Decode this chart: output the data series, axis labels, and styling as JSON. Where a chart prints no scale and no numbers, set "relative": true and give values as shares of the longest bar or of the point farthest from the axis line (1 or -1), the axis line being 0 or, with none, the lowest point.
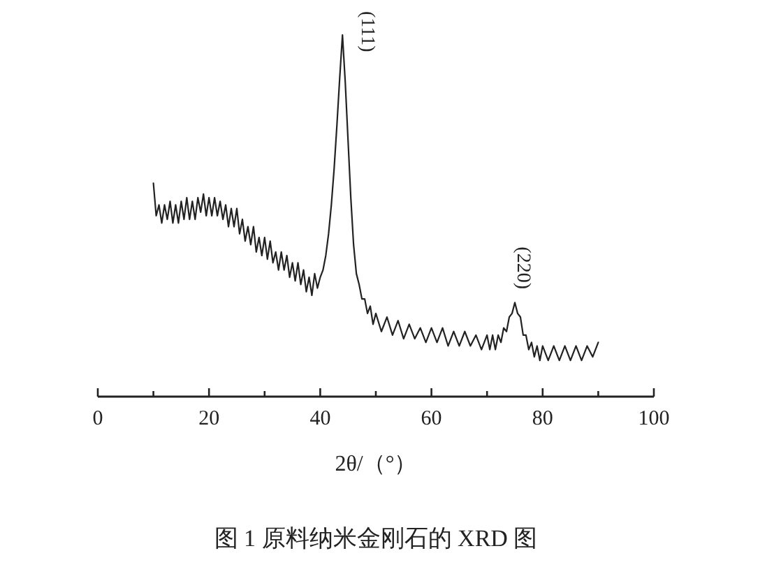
{
  "chart_data": {
    "type": "line",
    "relative": true,
    "color": "#222222",
    "xlabel": "2θ/（°）",
    "xlim": [
      0,
      100
    ],
    "xticks": [
      0,
      {
        "value": 10,
        "label": null
      },
      20,
      {
        "value": 30,
        "label": null
      },
      40,
      {
        "value": 50,
        "label": null
      },
      60,
      {
        "value": 70,
        "label": null
      },
      80,
      {
        "value": 90,
        "label": null
      },
      100
    ],
    "annotations": [
      {
        "text": "(111)",
        "x": 44,
        "y": 1.0
      },
      {
        "text": "(220)",
        "x": 75,
        "y": 0.26
      },
      "图 1   原料纳米金刚石的 XRD 图"
    ],
    "x": [
      10,
      10.5,
      11,
      11.5,
      12,
      12.5,
      13,
      13.5,
      14,
      14.5,
      15,
      15.5,
      16,
      16.5,
      17,
      17.5,
      18,
      18.5,
      19,
      19.5,
      20,
      20.5,
      21,
      21.5,
      22,
      22.5,
      23,
      23.5,
      24,
      24.5,
      25,
      25.5,
      26,
      26.5,
      27,
      27.5,
      28,
      28.5,
      29,
      29.5,
      30,
      30.5,
      31,
      31.5,
      32,
      32.5,
      33,
      33.5,
      34,
      34.5,
      35,
      35.5,
      36,
      36.5,
      37,
      37.5,
      38,
      38.5,
      39,
      39.5,
      40,
      40.5,
      41,
      41.5,
      42,
      42.5,
      43,
      43.5,
      44,
      44.5,
      45,
      45.5,
      46,
      46.5,
      47,
      47.5,
      48,
      48.5,
      49,
      49.5,
      50,
      51,
      52,
      53,
      54,
      55,
      56,
      57,
      58,
      59,
      60,
      61,
      62,
      63,
      64,
      65,
      66,
      67,
      68,
      69,
      70,
      70.5,
      71,
      71.5,
      72,
      72.5,
      73,
      73.5,
      74,
      74.5,
      75,
      75.5,
      76,
      76.5,
      77,
      77.5,
      78,
      78.5,
      79,
      79.5,
      80,
      81,
      82,
      83,
      84,
      85,
      86,
      87,
      88,
      89,
      90
    ],
    "values": [
      0.59,
      0.5,
      0.53,
      0.48,
      0.53,
      0.49,
      0.54,
      0.48,
      0.53,
      0.48,
      0.54,
      0.49,
      0.55,
      0.49,
      0.54,
      0.49,
      0.55,
      0.51,
      0.56,
      0.5,
      0.55,
      0.5,
      0.55,
      0.5,
      0.54,
      0.49,
      0.53,
      0.47,
      0.52,
      0.47,
      0.52,
      0.45,
      0.49,
      0.43,
      0.47,
      0.42,
      0.47,
      0.4,
      0.44,
      0.39,
      0.44,
      0.38,
      0.43,
      0.37,
      0.4,
      0.35,
      0.4,
      0.35,
      0.39,
      0.33,
      0.37,
      0.32,
      0.37,
      0.31,
      0.35,
      0.29,
      0.33,
      0.28,
      0.34,
      0.3,
      0.33,
      0.35,
      0.39,
      0.45,
      0.53,
      0.63,
      0.75,
      0.88,
      1.0,
      0.87,
      0.71,
      0.55,
      0.42,
      0.34,
      0.31,
      0.27,
      0.27,
      0.23,
      0.25,
      0.2,
      0.23,
      0.18,
      0.22,
      0.17,
      0.21,
      0.16,
      0.2,
      0.16,
      0.19,
      0.15,
      0.19,
      0.15,
      0.19,
      0.14,
      0.18,
      0.14,
      0.18,
      0.14,
      0.17,
      0.13,
      0.17,
      0.13,
      0.17,
      0.13,
      0.17,
      0.15,
      0.19,
      0.18,
      0.22,
      0.23,
      0.26,
      0.23,
      0.22,
      0.17,
      0.17,
      0.13,
      0.15,
      0.11,
      0.14,
      0.1,
      0.14,
      0.1,
      0.14,
      0.1,
      0.14,
      0.1,
      0.14,
      0.1,
      0.14,
      0.11,
      0.15
    ]
  }
}
